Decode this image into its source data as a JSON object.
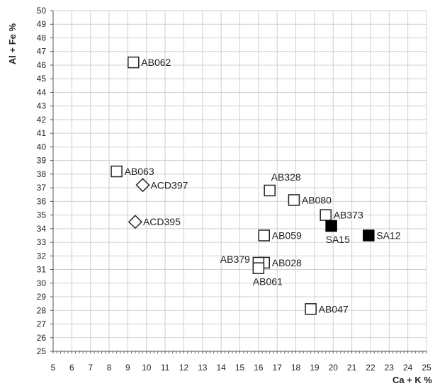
{
  "chart_data": {
    "type": "scatter",
    "xlabel": "Ca + K %",
    "ylabel": "Al + Fe %",
    "xlim": [
      5,
      25
    ],
    "ylim": [
      25,
      50
    ],
    "x_ticks": [
      5,
      6,
      7,
      8,
      9,
      10,
      11,
      12,
      13,
      14,
      15,
      16,
      17,
      18,
      19,
      20,
      21,
      22,
      23,
      24,
      25
    ],
    "x_tick_labels": [
      "5",
      "6",
      "7",
      "8",
      "9",
      "10",
      "11",
      "12",
      "13",
      "14",
      "15",
      "16",
      "17",
      "18",
      "19",
      "20",
      "21",
      "22",
      "23",
      "24",
      "25"
    ],
    "y_ticks": [
      25,
      26,
      27,
      28,
      29,
      30,
      31,
      32,
      33,
      34,
      35,
      36,
      37,
      38,
      39,
      40,
      41,
      42,
      43,
      44,
      45,
      46,
      47,
      48,
      49,
      50
    ],
    "grid": true,
    "colors": {
      "grid": "#d0d0d0",
      "axis": "#555555",
      "marker_stroke": "#222222",
      "marker_fill_solid": "#000000",
      "marker_fill_open": "#ffffff"
    },
    "points": [
      {
        "label": "AB062",
        "x": 9.3,
        "y": 46.2,
        "marker": "open-square",
        "label_side": "right"
      },
      {
        "label": "AB063",
        "x": 8.4,
        "y": 38.2,
        "marker": "open-square",
        "label_side": "right"
      },
      {
        "label": "ACD397",
        "x": 9.8,
        "y": 37.2,
        "marker": "open-diamond",
        "label_side": "right"
      },
      {
        "label": "ACD395",
        "x": 9.4,
        "y": 34.5,
        "marker": "open-diamond",
        "label_side": "right"
      },
      {
        "label": "AB328",
        "x": 16.6,
        "y": 36.8,
        "marker": "open-square",
        "label_side": "above-right"
      },
      {
        "label": "AB080",
        "x": 17.9,
        "y": 36.1,
        "marker": "open-square",
        "label_side": "right"
      },
      {
        "label": "AB373",
        "x": 19.6,
        "y": 35.0,
        "marker": "open-square",
        "label_side": "right"
      },
      {
        "label": "SA15",
        "x": 19.9,
        "y": 34.2,
        "marker": "filled-square",
        "label_side": "below"
      },
      {
        "label": "SA12",
        "x": 21.9,
        "y": 33.5,
        "marker": "filled-square",
        "label_side": "right"
      },
      {
        "label": "AB059",
        "x": 16.3,
        "y": 33.5,
        "marker": "open-square",
        "label_side": "right"
      },
      {
        "label": "AB028",
        "x": 16.3,
        "y": 31.5,
        "marker": "open-square",
        "label_side": "right"
      },
      {
        "label": "AB379",
        "x": 16.0,
        "y": 31.5,
        "marker": "open-square",
        "label_side": "left"
      },
      {
        "label": "AB061",
        "x": 16.0,
        "y": 31.1,
        "marker": "open-square",
        "label_side": "below"
      },
      {
        "label": "AB047",
        "x": 18.8,
        "y": 28.1,
        "marker": "open-square",
        "label_side": "right"
      }
    ]
  }
}
